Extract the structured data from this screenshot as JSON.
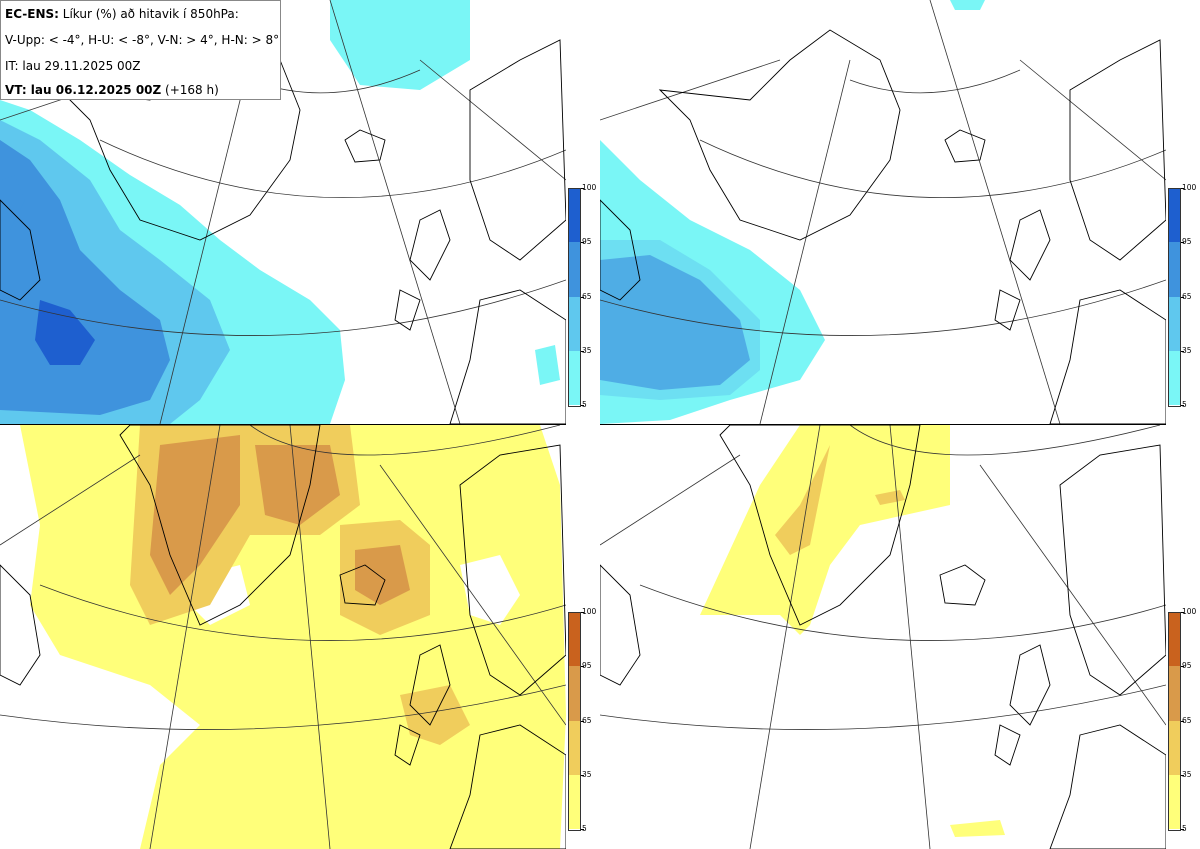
{
  "header": {
    "model": "EC-ENS:",
    "title_rest": "Líkur (%) að hitavik í 850hPa:",
    "criteria": "V-Upp: < -4°, H-U: < -8°, V-N: > 4°, H-N: > 8°",
    "init_time": "IT: lau 29.11.2025 00Z",
    "valid_label": "VT: lau 06.12.2025 00Z",
    "lead": "(+168 h)"
  },
  "colorbar_ticks": [
    "100",
    "95",
    "65",
    "35",
    "5"
  ],
  "colors": {
    "cold": [
      "#7af6f6",
      "#5fc8ee",
      "#3f93dd",
      "#1e5fcf"
    ],
    "warm": [
      "#ffff7a",
      "#f0cd5c",
      "#d99a4a",
      "#c9621e"
    ],
    "coast": "#000000",
    "grid": "#333333"
  },
  "panels": [
    {
      "id": "V-Upp",
      "palette": "cold"
    },
    {
      "id": "H-U",
      "palette": "cold"
    },
    {
      "id": "V-N",
      "palette": "warm"
    },
    {
      "id": "H-N",
      "palette": "warm"
    }
  ]
}
